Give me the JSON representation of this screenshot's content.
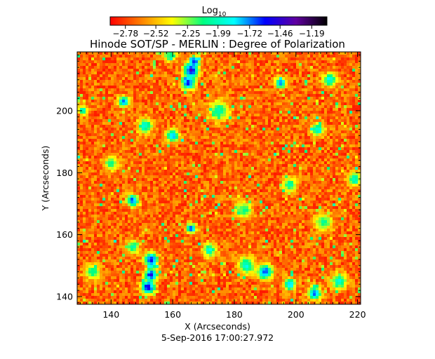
{
  "chart_data": {
    "type": "heatmap",
    "title": "Hinode SOT/SP - MERLIN : Degree of Polarization",
    "xlabel": "X (Arcseconds)",
    "ylabel": "Y (Arcseconds)",
    "xlim": [
      129,
      221
    ],
    "ylim": [
      137.5,
      219
    ],
    "xticks": [
      140,
      160,
      180,
      200,
      220
    ],
    "yticks": [
      140,
      160,
      180,
      200
    ],
    "colorbar": {
      "title": "Log",
      "subscript": "10",
      "ticks": [
        -2.78,
        -2.52,
        -2.25,
        -1.99,
        -1.72,
        -1.46,
        -1.19
      ],
      "tick_labels": [
        "−2.78",
        "−2.52",
        "−2.25",
        "−1.99",
        "−1.72",
        "−1.46",
        "−1.19"
      ],
      "range": [
        -2.91,
        -1.06
      ],
      "colormap": [
        "#ff0000",
        "#ff8000",
        "#ffff00",
        "#00ff80",
        "#00ffff",
        "#0000ff",
        "#6000a0",
        "#000000"
      ]
    },
    "background_level": -2.7,
    "features": [
      {
        "x": 166,
        "y": 213,
        "size": 2.2,
        "level": -1.5
      },
      {
        "x": 165,
        "y": 209,
        "size": 2.0,
        "level": -1.55
      },
      {
        "x": 167,
        "y": 216,
        "size": 1.6,
        "level": -1.6
      },
      {
        "x": 144,
        "y": 203,
        "size": 1.6,
        "level": -1.65
      },
      {
        "x": 151,
        "y": 195,
        "size": 2.2,
        "level": -1.9
      },
      {
        "x": 160,
        "y": 192,
        "size": 1.8,
        "level": -1.7
      },
      {
        "x": 175,
        "y": 200,
        "size": 3.0,
        "level": -2.0
      },
      {
        "x": 195,
        "y": 209,
        "size": 1.6,
        "level": -1.65
      },
      {
        "x": 211,
        "y": 210,
        "size": 2.0,
        "level": -1.85
      },
      {
        "x": 207,
        "y": 194,
        "size": 2.0,
        "level": -1.9
      },
      {
        "x": 131,
        "y": 200,
        "size": 1.4,
        "level": -1.9
      },
      {
        "x": 147,
        "y": 171,
        "size": 1.8,
        "level": -1.65
      },
      {
        "x": 166,
        "y": 162,
        "size": 1.4,
        "level": -1.6
      },
      {
        "x": 153,
        "y": 152,
        "size": 2.0,
        "level": -1.55
      },
      {
        "x": 153,
        "y": 147,
        "size": 1.8,
        "level": -1.5
      },
      {
        "x": 152,
        "y": 143,
        "size": 2.0,
        "level": -1.45
      },
      {
        "x": 147,
        "y": 156,
        "size": 2.0,
        "level": -2.0
      },
      {
        "x": 190,
        "y": 148,
        "size": 2.2,
        "level": -1.6
      },
      {
        "x": 184,
        "y": 150,
        "size": 2.6,
        "level": -1.95
      },
      {
        "x": 198,
        "y": 144,
        "size": 1.8,
        "level": -1.75
      },
      {
        "x": 206,
        "y": 141,
        "size": 2.0,
        "level": -1.7
      },
      {
        "x": 214,
        "y": 145,
        "size": 2.4,
        "level": -1.95
      },
      {
        "x": 219,
        "y": 178,
        "size": 2.0,
        "level": -1.95
      },
      {
        "x": 198,
        "y": 176,
        "size": 2.2,
        "level": -2.05
      },
      {
        "x": 183,
        "y": 168,
        "size": 2.6,
        "level": -2.1
      },
      {
        "x": 140,
        "y": 183,
        "size": 2.2,
        "level": -2.1
      },
      {
        "x": 134,
        "y": 148,
        "size": 2.4,
        "level": -2.05
      },
      {
        "x": 172,
        "y": 155,
        "size": 2.0,
        "level": -1.9
      },
      {
        "x": 209,
        "y": 164,
        "size": 2.6,
        "level": -2.1
      },
      {
        "x": 159,
        "y": 218,
        "size": 2.0,
        "level": -2.05
      }
    ]
  },
  "timestamp": "5-Sep-2016 17:00:27.972"
}
